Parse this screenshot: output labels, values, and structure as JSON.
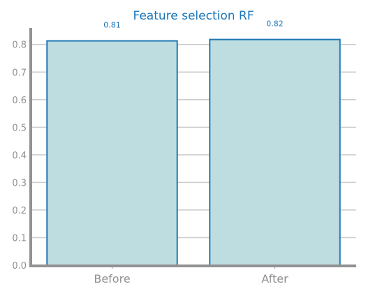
{
  "chart_data": {
    "type": "bar",
    "title": "Feature selection RF",
    "categories": [
      "Before",
      "After"
    ],
    "values": [
      0.813,
      0.818
    ],
    "data_labels": [
      "0.81",
      "0.82"
    ],
    "xlabel": "",
    "ylabel": "",
    "ylim": [
      0,
      0.86
    ],
    "yticks": [
      0.0,
      0.1,
      0.2,
      0.3,
      0.4,
      0.5,
      0.6,
      0.7,
      0.8
    ],
    "ytick_labels": [
      "0.0",
      "0.1",
      "0.2",
      "0.3",
      "0.4",
      "0.5",
      "0.6",
      "0.7",
      "0.8"
    ],
    "grid": "horizontal",
    "legend": "none",
    "colors": {
      "bar_fill": "#bedde1",
      "bar_edge": "#1f77b4",
      "title": "#1a75b8",
      "data_label": "#1a75b8",
      "tick_label": "#909090",
      "axis": "#929292",
      "grid": "#cccccc"
    }
  }
}
